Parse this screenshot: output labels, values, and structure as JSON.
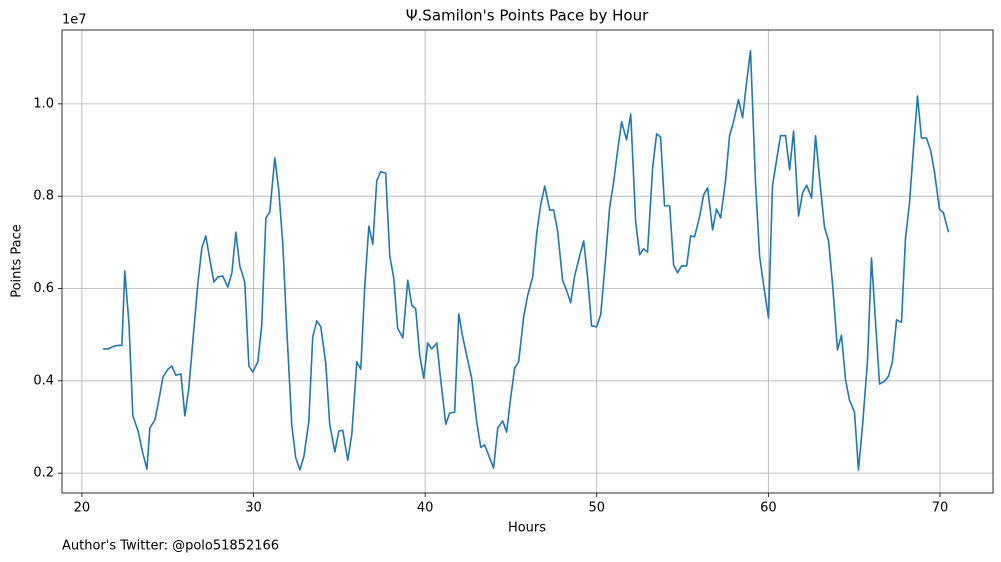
{
  "chart_data": {
    "type": "line",
    "title": "Ψ.Samilon's Points Pace by Hour",
    "x_label": "Hours",
    "y_label": "Points Pace",
    "y_offset_label": "1e7",
    "footnote": "Author's Twitter: @polo51852166",
    "color": "#1f77b4",
    "grid": true,
    "xlim": [
      18.84,
      73.09
    ],
    "ylim": [
      0.157,
      1.16
    ],
    "xticks": [
      20,
      30,
      40,
      50,
      60,
      70
    ],
    "yticks": [
      0.2,
      0.4,
      0.6,
      0.8,
      {
        "value": 1,
        "label": "1.0"
      }
    ],
    "x": [
      21.22,
      21.5,
      21.86,
      22.15,
      22.33,
      22.5,
      22.74,
      22.97,
      23.26,
      23.55,
      23.79,
      23.96,
      24.25,
      24.48,
      24.72,
      25.01,
      25.24,
      25.47,
      25.77,
      26.0,
      26.23,
      26.46,
      26.76,
      26.99,
      27.22,
      27.45,
      27.69,
      27.92,
      28.21,
      28.5,
      28.74,
      28.97,
      29.2,
      29.49,
      29.73,
      29.96,
      30.25,
      30.48,
      30.72,
      30.95,
      31.24,
      31.47,
      31.71,
      31.94,
      32.23,
      32.46,
      32.7,
      32.93,
      33.22,
      33.45,
      33.69,
      33.92,
      34.21,
      34.44,
      34.74,
      34.97,
      35.2,
      35.49,
      35.73,
      36.02,
      36.25,
      36.48,
      36.72,
      36.95,
      37.18,
      37.41,
      37.7,
      37.94,
      38.17,
      38.4,
      38.7,
      38.99,
      39.22,
      39.45,
      39.69,
      39.92,
      40.15,
      40.38,
      40.68,
      40.91,
      41.2,
      41.43,
      41.72,
      41.96,
      42.19,
      42.48,
      42.71,
      43.0,
      43.24,
      43.47,
      43.7,
      43.99,
      44.23,
      44.52,
      44.75,
      44.99,
      45.22,
      45.45,
      45.74,
      45.98,
      46.27,
      46.5,
      46.73,
      46.97,
      47.26,
      47.49,
      47.72,
      48.01,
      48.25,
      48.48,
      48.71,
      49.0,
      49.24,
      49.47,
      49.7,
      49.99,
      50.23,
      50.46,
      50.75,
      50.98,
      51.22,
      51.45,
      51.74,
      51.98,
      52.27,
      52.5,
      52.73,
      52.96,
      53.26,
      53.49,
      53.72,
      53.95,
      54.25,
      54.48,
      54.71,
      54.94,
      55.24,
      55.47,
      55.7,
      55.99,
      56.23,
      56.46,
      56.75,
      56.98,
      57.22,
      57.51,
      57.74,
      57.97,
      58.26,
      58.5,
      58.73,
      58.96,
      59.25,
      59.49,
      59.72,
      60.01,
      60.24,
      60.48,
      60.71,
      61.0,
      61.24,
      61.47,
      61.76,
      61.99,
      62.23,
      62.52,
      62.75,
      62.98,
      63.27,
      63.51,
      63.74,
      64.03,
      64.26,
      64.5,
      64.73,
      65.02,
      65.25,
      65.49,
      65.78,
      66.01,
      66.24,
      66.48,
      66.77,
      67.0,
      67.23,
      67.47,
      67.76,
      67.99,
      68.22,
      68.46,
      68.69,
      68.92,
      69.21,
      69.45,
      69.68,
      69.97,
      70.2,
      70.5
    ],
    "values": [
      0.469,
      0.469,
      0.475,
      0.477,
      0.477,
      0.638,
      0.525,
      0.324,
      0.293,
      0.243,
      0.209,
      0.298,
      0.315,
      0.358,
      0.408,
      0.425,
      0.432,
      0.412,
      0.415,
      0.324,
      0.384,
      0.484,
      0.612,
      0.688,
      0.714,
      0.664,
      0.614,
      0.625,
      0.627,
      0.603,
      0.634,
      0.722,
      0.649,
      0.614,
      0.432,
      0.419,
      0.441,
      0.521,
      0.753,
      0.766,
      0.883,
      0.814,
      0.694,
      0.51,
      0.304,
      0.233,
      0.207,
      0.235,
      0.311,
      0.495,
      0.53,
      0.517,
      0.438,
      0.306,
      0.246,
      0.291,
      0.293,
      0.228,
      0.285,
      0.441,
      0.425,
      0.603,
      0.735,
      0.696,
      0.833,
      0.853,
      0.85,
      0.67,
      0.623,
      0.514,
      0.493,
      0.618,
      0.564,
      0.556,
      0.454,
      0.406,
      0.482,
      0.469,
      0.482,
      0.402,
      0.306,
      0.33,
      0.332,
      0.545,
      0.495,
      0.445,
      0.406,
      0.313,
      0.256,
      0.261,
      0.239,
      0.211,
      0.298,
      0.313,
      0.289,
      0.365,
      0.428,
      0.441,
      0.538,
      0.586,
      0.625,
      0.718,
      0.781,
      0.822,
      0.77,
      0.77,
      0.725,
      0.618,
      0.595,
      0.569,
      0.627,
      0.67,
      0.703,
      0.623,
      0.519,
      0.517,
      0.543,
      0.64,
      0.775,
      0.829,
      0.9,
      0.961,
      0.922,
      0.978,
      0.744,
      0.673,
      0.686,
      0.679,
      0.863,
      0.935,
      0.928,
      0.779,
      0.779,
      0.651,
      0.634,
      0.649,
      0.649,
      0.714,
      0.712,
      0.755,
      0.803,
      0.818,
      0.727,
      0.772,
      0.753,
      0.835,
      0.931,
      0.961,
      1.009,
      0.97,
      1.046,
      1.115,
      0.831,
      0.67,
      0.608,
      0.536,
      0.822,
      0.879,
      0.931,
      0.931,
      0.857,
      0.941,
      0.757,
      0.807,
      0.824,
      0.796,
      0.931,
      0.84,
      0.733,
      0.703,
      0.61,
      0.467,
      0.499,
      0.402,
      0.358,
      0.332,
      0.207,
      0.304,
      0.445,
      0.666,
      0.53,
      0.393,
      0.399,
      0.41,
      0.441,
      0.532,
      0.527,
      0.709,
      0.783,
      0.905,
      1.017,
      0.926,
      0.926,
      0.9,
      0.853,
      0.772,
      0.764,
      0.722
    ]
  }
}
